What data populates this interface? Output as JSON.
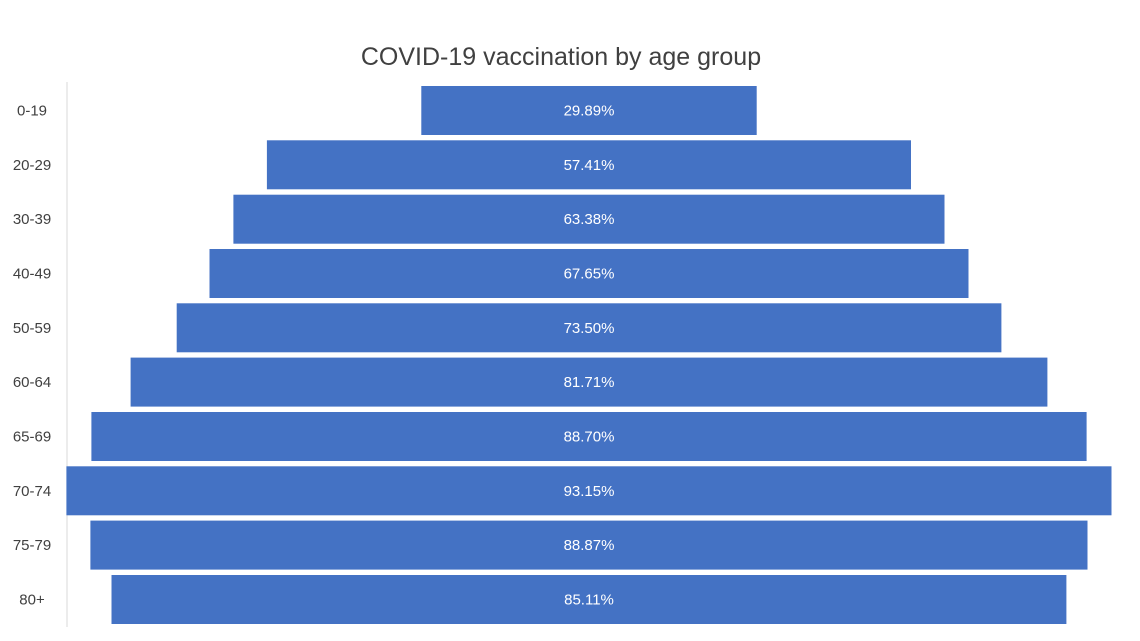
{
  "chart_data": {
    "type": "bar",
    "orientation": "horizontal",
    "layout": "centered",
    "title": "COVID-19 vaccination by age group",
    "categories": [
      "0-19",
      "20-29",
      "30-39",
      "40-49",
      "50-59",
      "60-64",
      "65-69",
      "70-74",
      "75-79",
      "80+"
    ],
    "values": [
      29.89,
      57.41,
      63.38,
      67.65,
      73.5,
      81.71,
      88.7,
      93.15,
      88.87,
      85.11
    ],
    "data_labels": [
      "29.89%",
      "57.41%",
      "63.38%",
      "67.65%",
      "73.50%",
      "81.71%",
      "88.70%",
      "93.15%",
      "88.87%",
      "85.11%"
    ],
    "xlabel": "",
    "ylabel": "",
    "grid": false,
    "legend": "none",
    "bar_color": "#4472C4",
    "label_color": "#FFFFFF",
    "title_color": "#404040",
    "axis_text_color": "#404040"
  }
}
